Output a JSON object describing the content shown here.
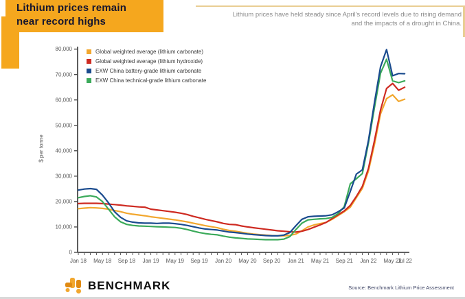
{
  "header": {
    "title_line1": "Lithium prices remain",
    "title_line2": "near record highs",
    "subtitle_line1": "Lithium prices have held steady since April's record levels due to rising demand",
    "subtitle_line2": "and the impacts of a drought in China.",
    "banner_color": "#F5A71E"
  },
  "chart_data": {
    "type": "line",
    "title": "",
    "xlabel": "",
    "ylabel": "$ per tonne",
    "ylim": [
      0,
      80000
    ],
    "grid": false,
    "legend_position": "top-left-inside",
    "y_tick_values": [
      0,
      10000,
      20000,
      30000,
      40000,
      50000,
      60000,
      70000,
      80000
    ],
    "y_tick_labels": [
      "0",
      "10,000",
      "20,000",
      "30,000",
      "40,000",
      "50,000",
      "60,000",
      "70,000",
      "80,000"
    ],
    "x_unit": "month index from Jan 2018 (0) to Jul 2022 (54)",
    "x_tick_labels": [
      "Jan 18",
      "May 18",
      "Sep 18",
      "Jan 19",
      "May 19",
      "Sep 19",
      "Jan 20",
      "May 20",
      "Sep 20",
      "Jan 21",
      "May 21",
      "Sep 21",
      "Jan 22",
      "May 22",
      "Jul 22"
    ],
    "x_tick_month_indices": [
      0,
      4,
      8,
      12,
      16,
      20,
      24,
      28,
      32,
      36,
      40,
      44,
      48,
      52,
      54
    ],
    "series": [
      {
        "name": "Global weighted average (lithium carbonate)",
        "color": "#F2A72E",
        "draw_order": 0,
        "values": [
          17200,
          17400,
          17600,
          17500,
          17300,
          17000,
          16500,
          16000,
          15400,
          15000,
          14700,
          14400,
          14000,
          13700,
          13400,
          13100,
          12800,
          12400,
          12000,
          11500,
          11000,
          10500,
          10100,
          9700,
          9100,
          8600,
          8300,
          7900,
          7500,
          7200,
          7000,
          6800,
          6600,
          6500,
          6500,
          6700,
          7200,
          8500,
          10000,
          10800,
          11300,
          11800,
          13000,
          14500,
          16000,
          17800,
          21500,
          25200,
          32000,
          42500,
          54500,
          60500,
          62000,
          59400,
          60300
        ]
      },
      {
        "name": "Global weighted average (lithium hydroxide)",
        "color": "#CE2A21",
        "draw_order": 1,
        "values": [
          19200,
          19300,
          19300,
          19300,
          19200,
          19000,
          18800,
          18600,
          18300,
          18100,
          17900,
          17800,
          17000,
          16700,
          16400,
          16100,
          15800,
          15400,
          14900,
          14200,
          13600,
          13000,
          12500,
          12000,
          11400,
          11000,
          10900,
          10400,
          10000,
          9700,
          9400,
          9100,
          8800,
          8500,
          8300,
          8100,
          8000,
          8300,
          9000,
          9900,
          10800,
          11800,
          13300,
          14800,
          16300,
          18500,
          22000,
          26000,
          33000,
          44000,
          56000,
          64500,
          66500,
          63800,
          65000
        ]
      },
      {
        "name": "EXW China battery-grade lithium carbonate",
        "color": "#1A4B8E",
        "draw_order": 3,
        "values": [
          24500,
          24900,
          25100,
          24800,
          22500,
          19500,
          16000,
          13800,
          12400,
          11900,
          11600,
          11500,
          11500,
          11400,
          11500,
          11500,
          11300,
          11000,
          10600,
          10100,
          9600,
          9200,
          9000,
          8800,
          8400,
          8000,
          7800,
          7500,
          7200,
          7000,
          6800,
          6600,
          6500,
          6500,
          6800,
          7800,
          10500,
          13000,
          14000,
          14200,
          14300,
          14400,
          14800,
          16000,
          17500,
          24000,
          30800,
          32500,
          44000,
          59000,
          73000,
          79800,
          69500,
          70400,
          70300
        ]
      },
      {
        "name": "EXW China technical-grade lithium carbonate",
        "color": "#3BAA5A",
        "draw_order": 2,
        "values": [
          21500,
          22000,
          22300,
          21800,
          20000,
          17000,
          14000,
          12000,
          11000,
          10600,
          10400,
          10300,
          10200,
          10100,
          10000,
          9900,
          9800,
          9500,
          9000,
          8400,
          7800,
          7400,
          7100,
          6900,
          6400,
          6000,
          5700,
          5500,
          5300,
          5200,
          5100,
          5000,
          5000,
          5000,
          5200,
          6200,
          9000,
          11500,
          12800,
          13000,
          13200,
          13300,
          13800,
          15300,
          18000,
          27000,
          29000,
          31000,
          43000,
          57000,
          70500,
          76000,
          67500,
          66800,
          67500
        ]
      }
    ]
  },
  "footer": {
    "brand": "BENCHMARK",
    "source": "Source: Benchmark Lithium Price Assessment"
  }
}
